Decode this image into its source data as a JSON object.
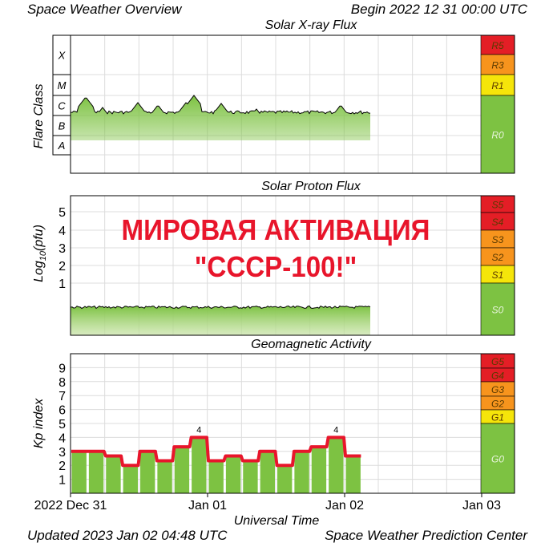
{
  "header": {
    "title": "Space Weather Overview",
    "begin": "Begin 2022 12 31 00:00 UTC"
  },
  "footer": {
    "updated": "Updated 2023 Jan 02 04:48 UTC",
    "credit": "Space Weather Prediction Center"
  },
  "overlay": {
    "line1": "МИРОВАЯ АКТИВАЦИЯ",
    "line2": "\"СССР-100!\""
  },
  "colors": {
    "fill_green": "#7dc242",
    "line_red": "#e8152b",
    "scale_green": "#7dc242",
    "scale_yellow": "#f5e50a",
    "scale_orange": "#f7941d",
    "scale_red": "#e41e26",
    "overlay_red": "#e8152b"
  },
  "chart_data": [
    {
      "type": "area",
      "title": "Solar X-ray Flux",
      "ylabel": "Flare Class",
      "class_labels": [
        "X",
        "M",
        "C",
        "B",
        "A"
      ],
      "scale_labels": [
        "R5",
        "R3",
        "R1",
        "R0"
      ],
      "x": [
        "2022-12-31 00:00",
        "2022-12-31 12:00",
        "2023-01-01 00:00",
        "2023-01-01 12:00",
        "2023-01-02 00:00",
        "2023-01-02 04:48"
      ],
      "series": [
        {
          "values": [
            "C1",
            "C3",
            "C2",
            "C2",
            "C2",
            "B9"
          ]
        }
      ]
    },
    {
      "type": "area",
      "title": "Solar Proton Flux",
      "ylabel": "Log10(pfu)",
      "yticks": [
        "1",
        "2",
        "3",
        "4",
        "5"
      ],
      "scale_labels": [
        "S5",
        "S4",
        "S3",
        "S2",
        "S1",
        "S0"
      ],
      "values_approx": [
        -0.3
      ]
    },
    {
      "type": "bar",
      "title": "Geomagnetic Activity",
      "ylabel": "Kp index",
      "xlabel": "Universal Time",
      "ylim": [
        0,
        10
      ],
      "yticks": [
        "1",
        "2",
        "3",
        "4",
        "5",
        "6",
        "7",
        "8",
        "9"
      ],
      "xticks": [
        "2022 Dec 31",
        "Jan 01",
        "Jan 02",
        "Jan 03"
      ],
      "scale_labels": [
        "G5",
        "G4",
        "G3",
        "G2",
        "G1",
        "G0"
      ],
      "values": [
        3,
        3,
        2.67,
        2,
        3,
        2.33,
        3.33,
        4,
        2.33,
        2.67,
        2.33,
        3,
        2,
        3,
        3.33,
        4,
        2.67
      ],
      "annotations": [
        {
          "bar": 7,
          "text": "4"
        },
        {
          "bar": 15,
          "text": "4"
        }
      ]
    }
  ]
}
